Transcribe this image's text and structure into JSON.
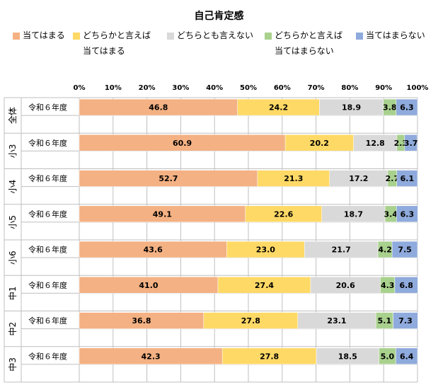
{
  "chart_data": {
    "type": "bar",
    "orientation": "horizontal-stacked-100",
    "title": "自己肯定感",
    "xlim": [
      0,
      100
    ],
    "x_ticks": [
      "0%",
      "10%",
      "20%",
      "30%",
      "40%",
      "50%",
      "60%",
      "70%",
      "80%",
      "90%",
      "100%"
    ],
    "groups": [
      "全体",
      "小3",
      "小4",
      "小5",
      "小6",
      "中1",
      "中2",
      "中3"
    ],
    "row_label": "令和６年度",
    "legend_position": "top",
    "series": [
      {
        "name": "当てはまる",
        "color": "#F4B183",
        "values": [
          46.8,
          60.9,
          52.7,
          49.1,
          43.6,
          41.0,
          36.8,
          42.3
        ]
      },
      {
        "name": "どちらかと言えば\n当てはまる",
        "color": "#FFD966",
        "values": [
          24.2,
          20.2,
          21.3,
          22.6,
          23.0,
          27.4,
          27.8,
          27.8
        ]
      },
      {
        "name": "どちらとも言えない",
        "color": "#D9D9D9",
        "values": [
          18.9,
          12.8,
          17.2,
          18.7,
          21.7,
          20.6,
          23.1,
          18.5
        ]
      },
      {
        "name": "どちらかと言えば\n当てはまらない",
        "color": "#A9D18E",
        "values": [
          3.8,
          2.3,
          2.7,
          3.4,
          4.2,
          4.3,
          5.1,
          5.0
        ]
      },
      {
        "name": "当てはまらない",
        "color": "#8FAADC",
        "values": [
          6.3,
          3.7,
          6.1,
          6.3,
          7.5,
          6.8,
          7.3,
          6.4
        ]
      }
    ],
    "grid": true
  }
}
